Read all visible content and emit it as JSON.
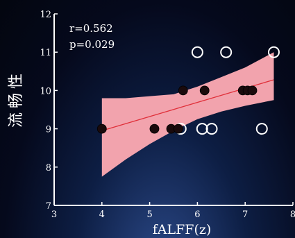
{
  "chart_data": {
    "type": "scatter",
    "xlabel": "fALFF(z)",
    "ylabel": "流畅性",
    "xlim": [
      3,
      8
    ],
    "ylim": [
      7,
      12
    ],
    "xticks": [
      "3",
      "4",
      "5",
      "6",
      "7",
      "8"
    ],
    "yticks": [
      "7",
      "8",
      "9",
      "10",
      "11",
      "12"
    ],
    "annotations": [
      "r=0.562",
      "p=0.029"
    ],
    "grid": false,
    "colors": {
      "filled_point": "#1a0a0c",
      "hollow_point": "#ffffff",
      "regression_line": "#e0303a",
      "confidence_band": "#f2a3ad"
    },
    "filled_points": [
      {
        "x": 4.0,
        "y": 9
      },
      {
        "x": 5.1,
        "y": 9
      },
      {
        "x": 5.45,
        "y": 9
      },
      {
        "x": 5.6,
        "y": 9
      },
      {
        "x": 5.7,
        "y": 10
      },
      {
        "x": 6.15,
        "y": 10
      },
      {
        "x": 6.95,
        "y": 10
      },
      {
        "x": 7.05,
        "y": 10
      },
      {
        "x": 7.15,
        "y": 10
      }
    ],
    "hollow_points": [
      {
        "x": 5.65,
        "y": 9
      },
      {
        "x": 6.0,
        "y": 11
      },
      {
        "x": 6.1,
        "y": 9
      },
      {
        "x": 6.3,
        "y": 9
      },
      {
        "x": 6.6,
        "y": 11
      },
      {
        "x": 7.35,
        "y": 9
      },
      {
        "x": 7.6,
        "y": 11
      }
    ],
    "regression_line": {
      "x": [
        4.0,
        7.6
      ],
      "y": [
        8.95,
        10.28
      ]
    },
    "confidence_band": {
      "x": [
        4.0,
        4.5,
        5.0,
        5.5,
        6.0,
        6.5,
        7.0,
        7.6
      ],
      "lower": [
        7.75,
        8.2,
        8.6,
        8.95,
        9.25,
        9.45,
        9.6,
        9.75
      ],
      "upper": [
        9.8,
        9.8,
        9.85,
        9.9,
        10.1,
        10.35,
        10.6,
        11.0
      ]
    }
  }
}
